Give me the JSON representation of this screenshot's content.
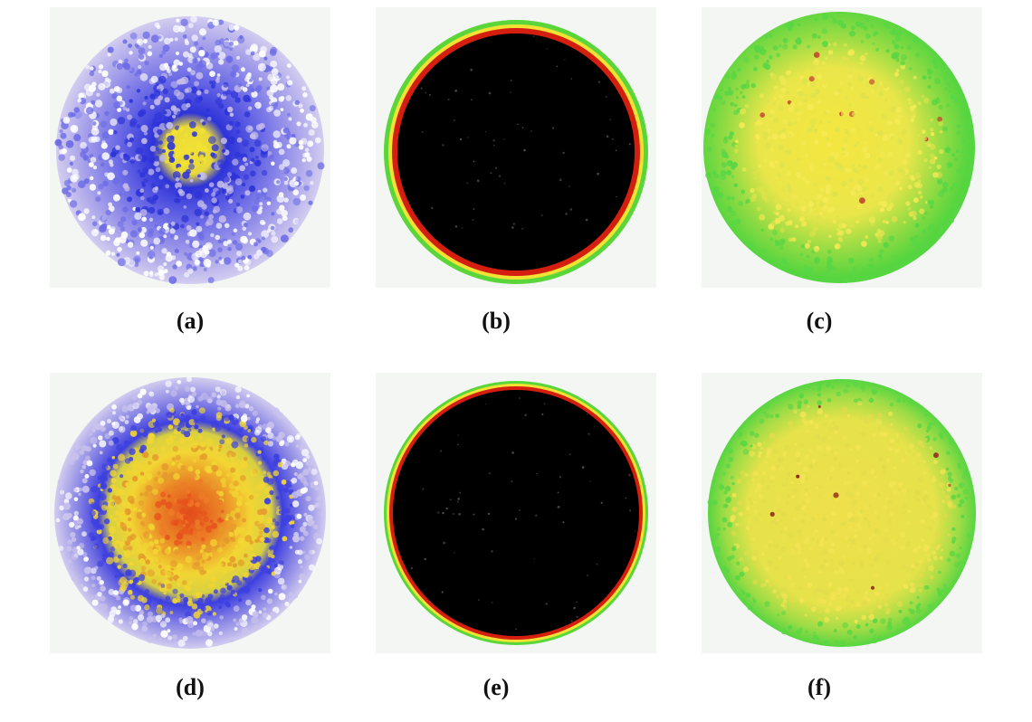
{
  "panels": [
    {
      "id": "a",
      "caption": "(a)",
      "scheme": "blue-yellow-core",
      "colors": {
        "outer": "#c5bdea",
        "mid": "#6d6ce6",
        "deep": "#2d33d8",
        "core": "#f2e233"
      }
    },
    {
      "id": "b",
      "caption": "(b)",
      "scheme": "black-disk-rim",
      "colors": {
        "fill": "#000000",
        "rim_inner": "#d41f10",
        "rim_mid": "#f2e233",
        "rim_outer": "#5ad63a"
      }
    },
    {
      "id": "c",
      "caption": "(c)",
      "scheme": "yellow-green",
      "colors": {
        "center": "#f2e64a",
        "edge": "#58d645",
        "spot": "#c0392b"
      }
    },
    {
      "id": "d",
      "caption": "(d)",
      "scheme": "orange-yellow-blue",
      "colors": {
        "core": "#e8501c",
        "mid": "#f2d633",
        "ring": "#3d3fe0",
        "outer": "#c9c2ec"
      }
    },
    {
      "id": "e",
      "caption": "(e)",
      "scheme": "black-disk-rim",
      "colors": {
        "fill": "#000000",
        "rim_inner": "#d41f10",
        "rim_mid": "#f2e233",
        "rim_outer": "#5ad63a"
      }
    },
    {
      "id": "f",
      "caption": "(f)",
      "scheme": "yellow-green",
      "colors": {
        "center": "#f0e24a",
        "edge": "#5bd644",
        "spot": "#8b1a1a"
      }
    }
  ]
}
